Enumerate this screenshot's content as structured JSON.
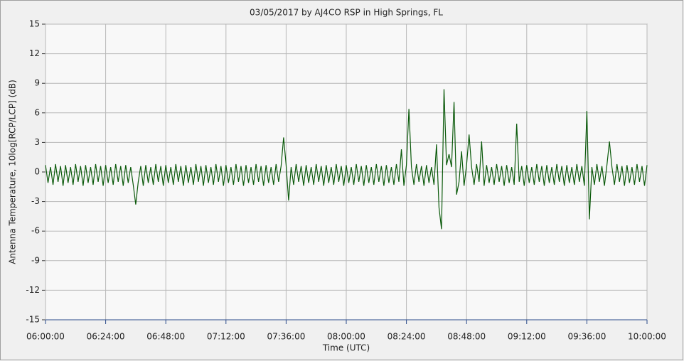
{
  "chart_data": {
    "type": "line",
    "title": "03/05/2017  by  AJ4CO RSP  in  High Springs, FL",
    "x_label": "Time (UTC)",
    "y_label": "Antenna Temperature, 10log[RCP/LCP] (dB)",
    "grid": true,
    "xlim": [
      0,
      240
    ],
    "xticks": [
      {
        "value": 0,
        "label": "06:00:00"
      },
      {
        "value": 24,
        "label": "06:24:00"
      },
      {
        "value": 48,
        "label": "06:48:00"
      },
      {
        "value": 72,
        "label": "07:12:00"
      },
      {
        "value": 96,
        "label": "07:36:00"
      },
      {
        "value": 120,
        "label": "08:00:00"
      },
      {
        "value": 144,
        "label": "08:24:00"
      },
      {
        "value": 168,
        "label": "08:48:00"
      },
      {
        "value": 192,
        "label": "09:12:00"
      },
      {
        "value": 216,
        "label": "09:36:00"
      },
      {
        "value": 240,
        "label": "10:00:00"
      }
    ],
    "ylim": [
      -15,
      15
    ],
    "yticks": [
      -15,
      -12,
      -9,
      -6,
      -3,
      0,
      3,
      6,
      9,
      12,
      15
    ],
    "x": [
      0,
      1,
      2,
      3,
      4,
      5,
      6,
      7,
      8,
      9,
      10,
      11,
      12,
      13,
      14,
      15,
      16,
      17,
      18,
      19,
      20,
      21,
      22,
      23,
      24,
      25,
      26,
      27,
      28,
      29,
      30,
      31,
      32,
      33,
      34,
      35,
      36,
      37,
      38,
      39,
      40,
      41,
      42,
      43,
      44,
      45,
      46,
      47,
      48,
      49,
      50,
      51,
      52,
      53,
      54,
      55,
      56,
      57,
      58,
      59,
      60,
      61,
      62,
      63,
      64,
      65,
      66,
      67,
      68,
      69,
      70,
      71,
      72,
      73,
      74,
      75,
      76,
      77,
      78,
      79,
      80,
      81,
      82,
      83,
      84,
      85,
      86,
      87,
      88,
      89,
      90,
      91,
      92,
      93,
      94,
      95,
      96,
      97,
      98,
      99,
      100,
      101,
      102,
      103,
      104,
      105,
      106,
      107,
      108,
      109,
      110,
      111,
      112,
      113,
      114,
      115,
      116,
      117,
      118,
      119,
      120,
      121,
      122,
      123,
      124,
      125,
      126,
      127,
      128,
      129,
      130,
      131,
      132,
      133,
      134,
      135,
      136,
      137,
      138,
      139,
      140,
      141,
      142,
      143,
      144,
      145,
      146,
      147,
      148,
      149,
      150,
      151,
      152,
      153,
      154,
      155,
      156,
      157,
      158,
      159,
      160,
      161,
      162,
      163,
      164,
      165,
      166,
      167,
      168,
      169,
      170,
      171,
      172,
      173,
      174,
      175,
      176,
      177,
      178,
      179,
      180,
      181,
      182,
      183,
      184,
      185,
      186,
      187,
      188,
      189,
      190,
      191,
      192,
      193,
      194,
      195,
      196,
      197,
      198,
      199,
      200,
      201,
      202,
      203,
      204,
      205,
      206,
      207,
      208,
      209,
      210,
      211,
      212,
      213,
      214,
      215,
      216,
      217,
      218,
      219,
      220,
      221,
      222,
      223,
      224,
      225,
      226,
      227,
      228,
      229,
      230,
      231,
      232,
      233,
      234,
      235,
      236,
      237,
      238,
      239,
      240
    ],
    "series": [
      {
        "color": "#0b5a0b",
        "values": [
          0.7,
          -1.1,
          0.5,
          -1.3,
          0.8,
          -1.0,
          0.6,
          -1.4,
          0.7,
          -1.1,
          0.5,
          -1.3,
          0.8,
          -1.0,
          0.6,
          -1.4,
          0.7,
          -1.1,
          0.5,
          -1.3,
          0.8,
          -1.0,
          0.6,
          -1.4,
          0.7,
          -1.1,
          0.5,
          -1.3,
          0.8,
          -1.0,
          0.6,
          -1.4,
          0.7,
          -1.1,
          0.5,
          -1.3,
          -3.3,
          -1.0,
          0.6,
          -1.4,
          0.7,
          -1.1,
          0.5,
          -1.3,
          0.8,
          -1.0,
          0.6,
          -1.4,
          0.7,
          -1.1,
          0.5,
          -1.3,
          0.8,
          -1.0,
          0.6,
          -1.4,
          0.7,
          -1.1,
          0.5,
          -1.3,
          0.8,
          -1.0,
          0.6,
          -1.4,
          0.7,
          -1.1,
          0.5,
          -1.3,
          0.8,
          -1.0,
          0.6,
          -1.4,
          0.7,
          -1.1,
          0.5,
          -1.3,
          0.8,
          -1.0,
          0.6,
          -1.4,
          0.7,
          -1.1,
          0.5,
          -1.3,
          0.8,
          -1.0,
          0.6,
          -1.4,
          0.7,
          -1.1,
          0.5,
          -1.3,
          0.8,
          -1.0,
          0.6,
          3.5,
          0.7,
          -2.9,
          0.5,
          -1.3,
          0.8,
          -1.0,
          0.6,
          -1.4,
          0.7,
          -1.1,
          0.5,
          -1.3,
          0.8,
          -1.0,
          0.6,
          -1.4,
          0.7,
          -1.1,
          0.5,
          -1.3,
          0.8,
          -1.0,
          0.6,
          -1.4,
          0.7,
          -1.1,
          0.5,
          -1.3,
          0.8,
          -1.0,
          0.6,
          -1.4,
          0.7,
          -1.1,
          0.5,
          -1.3,
          0.8,
          -1.0,
          0.6,
          -1.4,
          0.7,
          -1.1,
          0.5,
          -1.3,
          0.8,
          -1.0,
          2.3,
          -1.4,
          0.7,
          6.4,
          0.5,
          -1.3,
          0.8,
          -1.0,
          0.6,
          -1.4,
          0.7,
          -1.1,
          0.5,
          -1.3,
          2.8,
          -3.6,
          -5.8,
          8.4,
          0.7,
          1.8,
          0.5,
          7.1,
          -2.3,
          -1.0,
          2.1,
          -1.4,
          0.7,
          3.8,
          0.5,
          -1.3,
          0.8,
          -1.0,
          3.1,
          -1.4,
          0.7,
          -1.1,
          0.5,
          -1.3,
          0.8,
          -1.0,
          0.6,
          -1.4,
          0.7,
          -1.1,
          0.5,
          -1.3,
          4.9,
          -1.0,
          0.6,
          -1.4,
          0.7,
          -1.1,
          0.5,
          -1.3,
          0.8,
          -1.0,
          0.6,
          -1.4,
          0.7,
          -1.1,
          0.5,
          -1.3,
          0.8,
          -1.0,
          0.6,
          -1.4,
          0.7,
          -1.1,
          0.5,
          -1.3,
          0.8,
          -1.0,
          0.6,
          -1.4,
          6.2,
          -4.8,
          0.5,
          -1.3,
          0.8,
          -1.0,
          0.6,
          -1.4,
          0.7,
          3.1,
          0.5,
          -1.3,
          0.8,
          -1.0,
          0.6,
          -1.4,
          0.7,
          -1.1,
          0.5,
          -1.3,
          0.8,
          -1.0,
          0.6,
          -1.4,
          0.7
        ]
      }
    ]
  }
}
